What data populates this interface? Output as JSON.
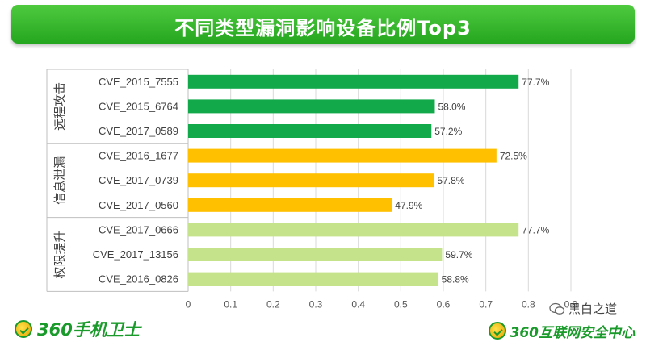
{
  "header": {
    "title": "不同类型漏洞影响设备比例Top3"
  },
  "chart_data": {
    "type": "bar",
    "orientation": "horizontal",
    "title": "不同类型漏洞影响设备比例Top3",
    "xlim": [
      0,
      0.9
    ],
    "xticks": [
      "0",
      "0.1",
      "0.2",
      "0.3",
      "0.4",
      "0.5",
      "0.6",
      "0.7",
      "0.8",
      "0.9"
    ],
    "grid": true,
    "groups": [
      {
        "name": "远程攻击",
        "color": "#12a94a",
        "items": [
          {
            "label": "CVE_2015_7555",
            "value": 0.777,
            "value_label": "77.7%"
          },
          {
            "label": "CVE_2015_6764",
            "value": 0.58,
            "value_label": "58.0%"
          },
          {
            "label": "CVE_2017_0589",
            "value": 0.572,
            "value_label": "57.2%"
          }
        ]
      },
      {
        "name": "信息泄漏",
        "color": "#ffc000",
        "items": [
          {
            "label": "CVE_2016_1677",
            "value": 0.725,
            "value_label": "72.5%"
          },
          {
            "label": "CVE_2017_0739",
            "value": 0.578,
            "value_label": "57.8%"
          },
          {
            "label": "CVE_2017_0560",
            "value": 0.479,
            "value_label": "47.9%"
          }
        ]
      },
      {
        "name": "权限提升",
        "color": "#c5e38b",
        "items": [
          {
            "label": "CVE_2017_0666",
            "value": 0.777,
            "value_label": "77.7%"
          },
          {
            "label": "CVE_2017_13156",
            "value": 0.597,
            "value_label": "59.7%"
          },
          {
            "label": "CVE_2016_0826",
            "value": 0.588,
            "value_label": "58.8%"
          }
        ]
      }
    ]
  },
  "footer": {
    "left_logo": "360手机卫士",
    "right_logo": "360互联网安全中心",
    "watermark": "黑白之道"
  },
  "colors": {
    "banner": "#2db52a",
    "logo_green": "#1a9a2a"
  },
  "icons": {
    "badge": "360-badge-icon",
    "wechat": "wechat-icon"
  }
}
